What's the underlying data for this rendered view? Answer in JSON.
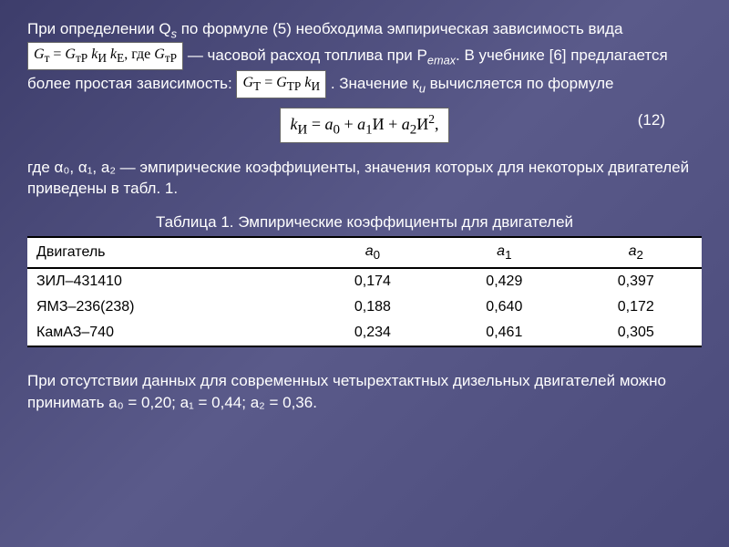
{
  "p1_a": "При определении Q",
  "p1_sub": "s",
  "p1_b": " по формуле (5) необходима эмпирическая зависимость вида ",
  "p1_c": " — часовой расход топлива при P",
  "p1_sub2": "emax",
  "p1_d": ". В учебнике [6] предлагается более простая зависимость: ",
  "p1_e": ". Значение к",
  "p1_sub3": "и",
  "p1_f": " вычисляется по формуле",
  "formula1": "Gт = GтP kИ kE, где GтP",
  "formula2": "GТ = GТР kИ",
  "formula_main": "kИ = a₀ + a₁И + a₂И²,",
  "eq_num": "(12)",
  "p2": "где α₀, α₁, a₂ — эмпирические коэффициенты, значения которых для некоторых двигателей приведены в табл. 1.",
  "table_title": "Таблица 1. Эмпирические коэффициенты для двигателей",
  "table": {
    "headers": [
      "Двигатель",
      "a₀",
      "a₁",
      "a₂"
    ],
    "rows": [
      [
        "ЗИЛ–431410",
        "0,174",
        "0,429",
        "0,397"
      ],
      [
        "ЯМЗ–236(238)",
        "0,188",
        "0,640",
        "0,172"
      ],
      [
        "КамАЗ–740",
        "0,234",
        "0,461",
        "0,305"
      ]
    ],
    "col_widths": [
      "40%",
      "20%",
      "20%",
      "20%"
    ]
  },
  "p3": "При отсутствии данных для современных четырехтактных дизельных двигателей можно принимать a₀ = 0,20; a₁ = 0,44; a₂ = 0,36.",
  "colors": {
    "bg": "#4a4a7a",
    "text": "#ffffff",
    "formula_bg": "#ffffff",
    "formula_text": "#000000"
  },
  "fontsize_body": 17,
  "fontsize_formula": 18
}
